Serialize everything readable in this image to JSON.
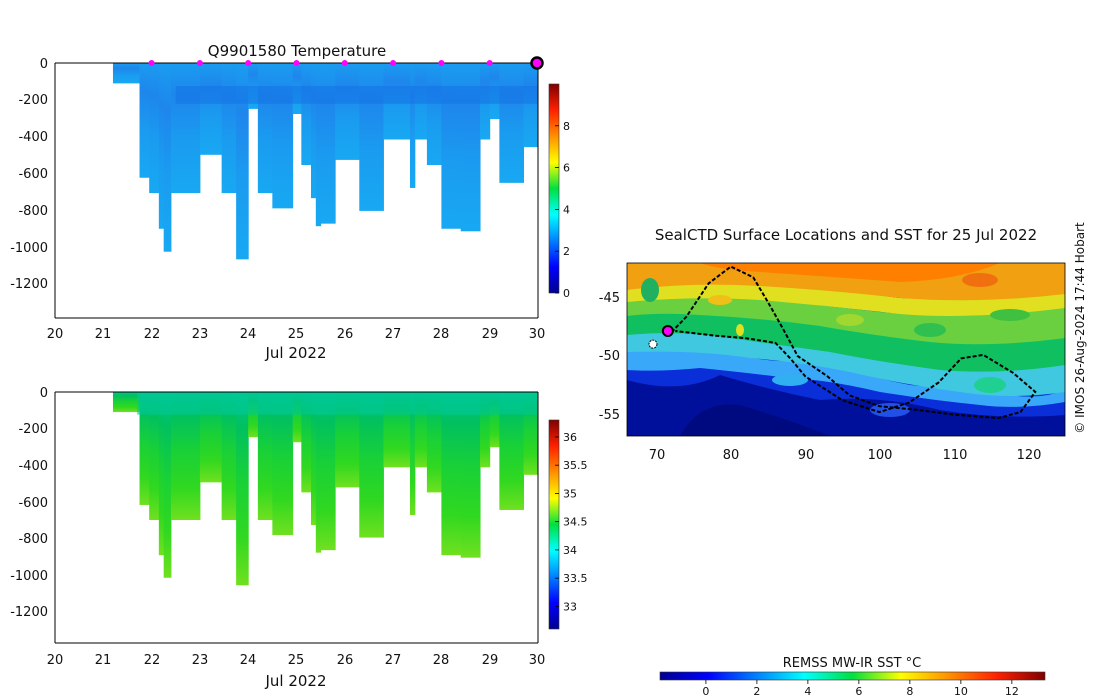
{
  "chart_data": [
    {
      "type": "heatmap",
      "title": "Q9901580  Temperature",
      "x_ticks": [
        "20",
        "21",
        "22",
        "23",
        "24",
        "25",
        "26",
        "27",
        "28",
        "29",
        "30"
      ],
      "x_range": [
        20,
        30
      ],
      "xlabel": "Jul 2022",
      "y_ticks": [
        "0",
        "-200",
        "-400",
        "-600",
        "-800",
        "-1000",
        "-1200"
      ],
      "y_range": [
        -1380,
        0
      ],
      "colorbar_ticks": [
        "0",
        "2",
        "4",
        "6",
        "8"
      ],
      "colorbar_range": [
        0,
        10
      ],
      "surface_markers_day": [
        22,
        23,
        24,
        25,
        26,
        27,
        28,
        29
      ],
      "latest_marker_day": 30,
      "approx_temperature": 3.0
    },
    {
      "type": "heatmap",
      "title": "",
      "x_ticks": [
        "20",
        "21",
        "22",
        "23",
        "24",
        "25",
        "26",
        "27",
        "28",
        "29",
        "30"
      ],
      "x_range": [
        20,
        30
      ],
      "xlabel": "Jul 2022",
      "y_ticks": [
        "0",
        "-200",
        "-400",
        "-600",
        "-800",
        "-1000",
        "-1200"
      ],
      "y_range": [
        -1380,
        0
      ],
      "colorbar_ticks": [
        "33",
        "33.5",
        "34",
        "34.5",
        "35",
        "35.5",
        "36"
      ],
      "colorbar_range": [
        32.6,
        36.3
      ],
      "approx_salinity_surface": 33.9,
      "approx_salinity_deep": 34.6
    },
    {
      "type": "heatmap",
      "title": "SealCTD Surface Locations and SST for 25 Jul 2022",
      "x_ticks": [
        "70",
        "80",
        "90",
        "100",
        "110",
        "120"
      ],
      "x_range": [
        66,
        125
      ],
      "y_ticks": [
        "-45",
        "-50",
        "-55"
      ],
      "y_range": [
        -57,
        -42.5
      ],
      "colorbar_label": "REMSS MW-IR SST °C",
      "colorbar_ticks": [
        "0",
        "2",
        "4",
        "6",
        "8",
        "10",
        "12"
      ],
      "colorbar_range": [
        -1.8,
        13.3
      ],
      "track_lon_lat": [
        [
          72,
          -48.3
        ],
        [
          74,
          -47
        ],
        [
          77,
          -44.2
        ],
        [
          80,
          -42.8
        ],
        [
          83,
          -43.7
        ],
        [
          85,
          -45.8
        ],
        [
          87,
          -48
        ],
        [
          89,
          -50.3
        ],
        [
          93,
          -52
        ],
        [
          96,
          -53.6
        ],
        [
          100,
          -54.5
        ],
        [
          105,
          -54.8
        ],
        [
          110,
          -55.2
        ],
        [
          116,
          -55.5
        ],
        [
          119,
          -55
        ],
        [
          121,
          -53.3
        ],
        [
          118,
          -51.7
        ],
        [
          114,
          -50.2
        ],
        [
          111,
          -50.5
        ],
        [
          108,
          -52.5
        ],
        [
          104,
          -54.2
        ],
        [
          100,
          -55
        ],
        [
          95,
          -54
        ],
        [
          90,
          -52
        ],
        [
          88,
          -50.5
        ],
        [
          86,
          -49.2
        ],
        [
          82,
          -48.8
        ],
        [
          78,
          -48.6
        ],
        [
          72.5,
          -48.2
        ]
      ],
      "current_location": [
        71.5,
        -48.2
      ]
    }
  ],
  "watermark": "© IMOS 26-Aug-2024 17:44 Hobart"
}
